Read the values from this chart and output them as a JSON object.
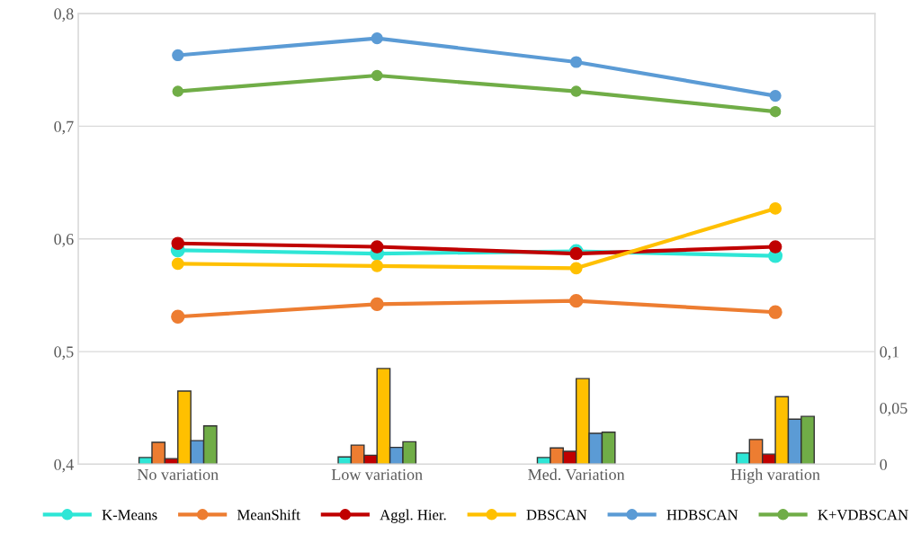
{
  "chart_data": {
    "type": "line",
    "categories": [
      "No variation",
      "Low variation",
      "Med. Variation",
      "High varation"
    ],
    "series": [
      {
        "name": "K-Means",
        "color": "#2ee6d6",
        "values": [
          0.59,
          0.587,
          0.589,
          0.585
        ]
      },
      {
        "name": "MeanShift",
        "color": "#ed7d31",
        "values": [
          0.531,
          0.542,
          0.545,
          0.535
        ]
      },
      {
        "name": "Aggl. Hier.",
        "color": "#c00000",
        "values": [
          0.596,
          0.593,
          0.587,
          0.593
        ]
      },
      {
        "name": "DBSCAN",
        "color": "#ffc000",
        "values": [
          0.578,
          0.576,
          0.574,
          0.627
        ]
      },
      {
        "name": "HDBSCAN",
        "color": "#5b9bd5",
        "values": [
          0.763,
          0.778,
          0.757,
          0.727
        ]
      },
      {
        "name": "K+VDBSCAN",
        "color": "#70ad47",
        "values": [
          0.731,
          0.745,
          0.731,
          0.713
        ]
      },
      {
        "type": "bar",
        "axis": "y2",
        "color": "#2ee6d6",
        "values": [
          0.006,
          0.0065,
          0.006,
          0.01
        ]
      },
      {
        "type": "bar",
        "axis": "y2",
        "color": "#ed7d31",
        "values": [
          0.0195,
          0.017,
          0.0145,
          0.022
        ]
      },
      {
        "type": "bar",
        "axis": "y2",
        "color": "#c00000",
        "values": [
          0.005,
          0.008,
          0.0115,
          0.009
        ]
      },
      {
        "type": "bar",
        "axis": "y2",
        "color": "#ffc000",
        "values": [
          0.065,
          0.085,
          0.076,
          0.06
        ]
      },
      {
        "type": "bar",
        "axis": "y2",
        "color": "#5b9bd5",
        "values": [
          0.021,
          0.015,
          0.0275,
          0.04
        ]
      },
      {
        "type": "bar",
        "axis": "y2",
        "color": "#70ad47",
        "values": [
          0.034,
          0.02,
          0.0285,
          0.0425
        ]
      }
    ],
    "ylim": [
      0.4,
      0.8
    ],
    "yticks": [
      {
        "value": 0.4,
        "label": "0,4"
      },
      {
        "value": 0.5,
        "label": "0,5"
      },
      {
        "value": 0.6,
        "label": "0,6"
      },
      {
        "value": 0.7,
        "label": "0,7"
      },
      {
        "value": 0.8,
        "label": "0,8"
      }
    ],
    "y2lim": [
      0,
      0.4
    ],
    "y2ticks": [
      0,
      {
        "value": 0.05,
        "label": "0,05"
      },
      {
        "value": 0.1,
        "label": "0,1"
      }
    ],
    "grid": "y",
    "legend": "bottom",
    "marker": "circle",
    "line_style": "solid"
  }
}
